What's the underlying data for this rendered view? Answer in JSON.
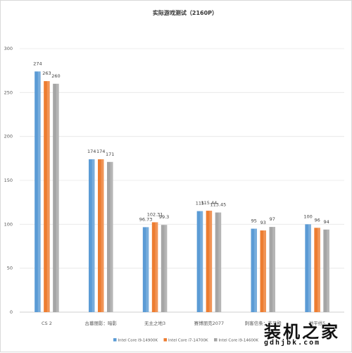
{
  "chart_data": {
    "type": "bar",
    "title": "实际游戏测试（2160P）",
    "xlabel": "",
    "ylabel": "",
    "ylim": [
      0,
      300
    ],
    "yticks": [
      0,
      50,
      100,
      150,
      200,
      250,
      300
    ],
    "grid": true,
    "legend_position": "bottom",
    "categories": [
      "CS 2",
      "古墓丽影：暗影",
      "无主之地3",
      "赛博朋克2077",
      "刺客信条：英灵殿",
      "地平线5"
    ],
    "series": [
      {
        "name": "Intel Core i9-14900K",
        "color": "#5b9bd5",
        "values": [
          274,
          174,
          96.73,
          115,
          95,
          100
        ],
        "labels": [
          "274",
          "174",
          "96.73",
          "115",
          "95",
          "100"
        ]
      },
      {
        "name": "Intel Core i7-14700K",
        "color": "#ed7d31",
        "values": [
          263,
          174,
          102.31,
          115.44,
          93,
          96
        ],
        "labels": [
          "263",
          "174",
          "102.31",
          "115.44",
          "93",
          "96"
        ]
      },
      {
        "name": "Intel Core i9-14600K",
        "color": "#a5a5a5",
        "values": [
          260,
          171,
          99.3,
          113.45,
          97,
          94
        ],
        "labels": [
          "260",
          "171",
          "99.3",
          "113.45",
          "97",
          "94"
        ]
      }
    ]
  },
  "watermark": {
    "brand": "装机之家",
    "url": "gdhjbk.com"
  }
}
